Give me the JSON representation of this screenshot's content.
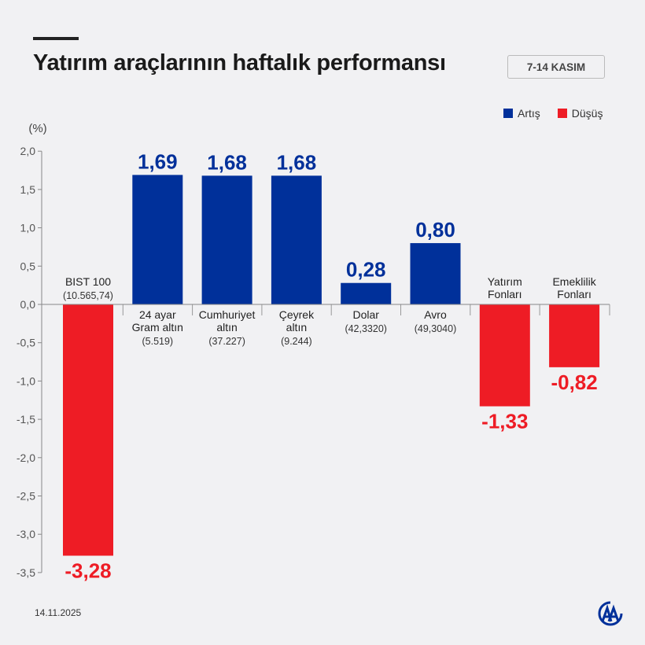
{
  "header": {
    "title": "Yatırım araçlarının haftalık performansı",
    "date_range": "7-14 KASIM"
  },
  "legend": [
    {
      "label": "Artış",
      "color": "#00309a"
    },
    {
      "label": "Düşüş",
      "color": "#ee1c25"
    }
  ],
  "footer": {
    "date": "14.11.2025",
    "logo": "AA"
  },
  "chart_data": {
    "type": "bar",
    "ylabel": "(%)",
    "ylim": [
      -3.5,
      2.0
    ],
    "yticks": [
      "2,0",
      "1,5",
      "1,0",
      "0,5",
      "0,0",
      "-0,5",
      "-1,0",
      "-1,5",
      "-2,0",
      "-2,5",
      "-3,0",
      "-3,5"
    ],
    "ytick_values": [
      2.0,
      1.5,
      1.0,
      0.5,
      0.0,
      -0.5,
      -1.0,
      -1.5,
      -2.0,
      -2.5,
      -3.0,
      -3.5
    ],
    "categories": [
      {
        "label": [
          "BIST 100"
        ],
        "sub": "(10.565,74)"
      },
      {
        "label": [
          "24 ayar",
          "Gram altın"
        ],
        "sub": "(5.519)"
      },
      {
        "label": [
          "Cumhuriyet",
          "altın"
        ],
        "sub": "(37.227)"
      },
      {
        "label": [
          "Çeyrek",
          "altın"
        ],
        "sub": "(9.244)"
      },
      {
        "label": [
          "Dolar"
        ],
        "sub": "(42,3320)"
      },
      {
        "label": [
          "Avro"
        ],
        "sub": "(49,3040)"
      },
      {
        "label": [
          "Yatırım",
          "Fonları"
        ],
        "sub": ""
      },
      {
        "label": [
          "Emeklilik",
          "Fonları"
        ],
        "sub": ""
      }
    ],
    "values": [
      -3.28,
      1.69,
      1.68,
      1.68,
      0.28,
      0.8,
      -1.33,
      -0.82
    ],
    "value_labels": [
      "-3,28",
      "1,69",
      "1,68",
      "1,68",
      "0,28",
      "0,80",
      "-1,33",
      "-0,82"
    ],
    "colors": {
      "positive": "#00309a",
      "negative": "#ee1c25"
    },
    "grid": false,
    "legend_position": "top-right"
  }
}
